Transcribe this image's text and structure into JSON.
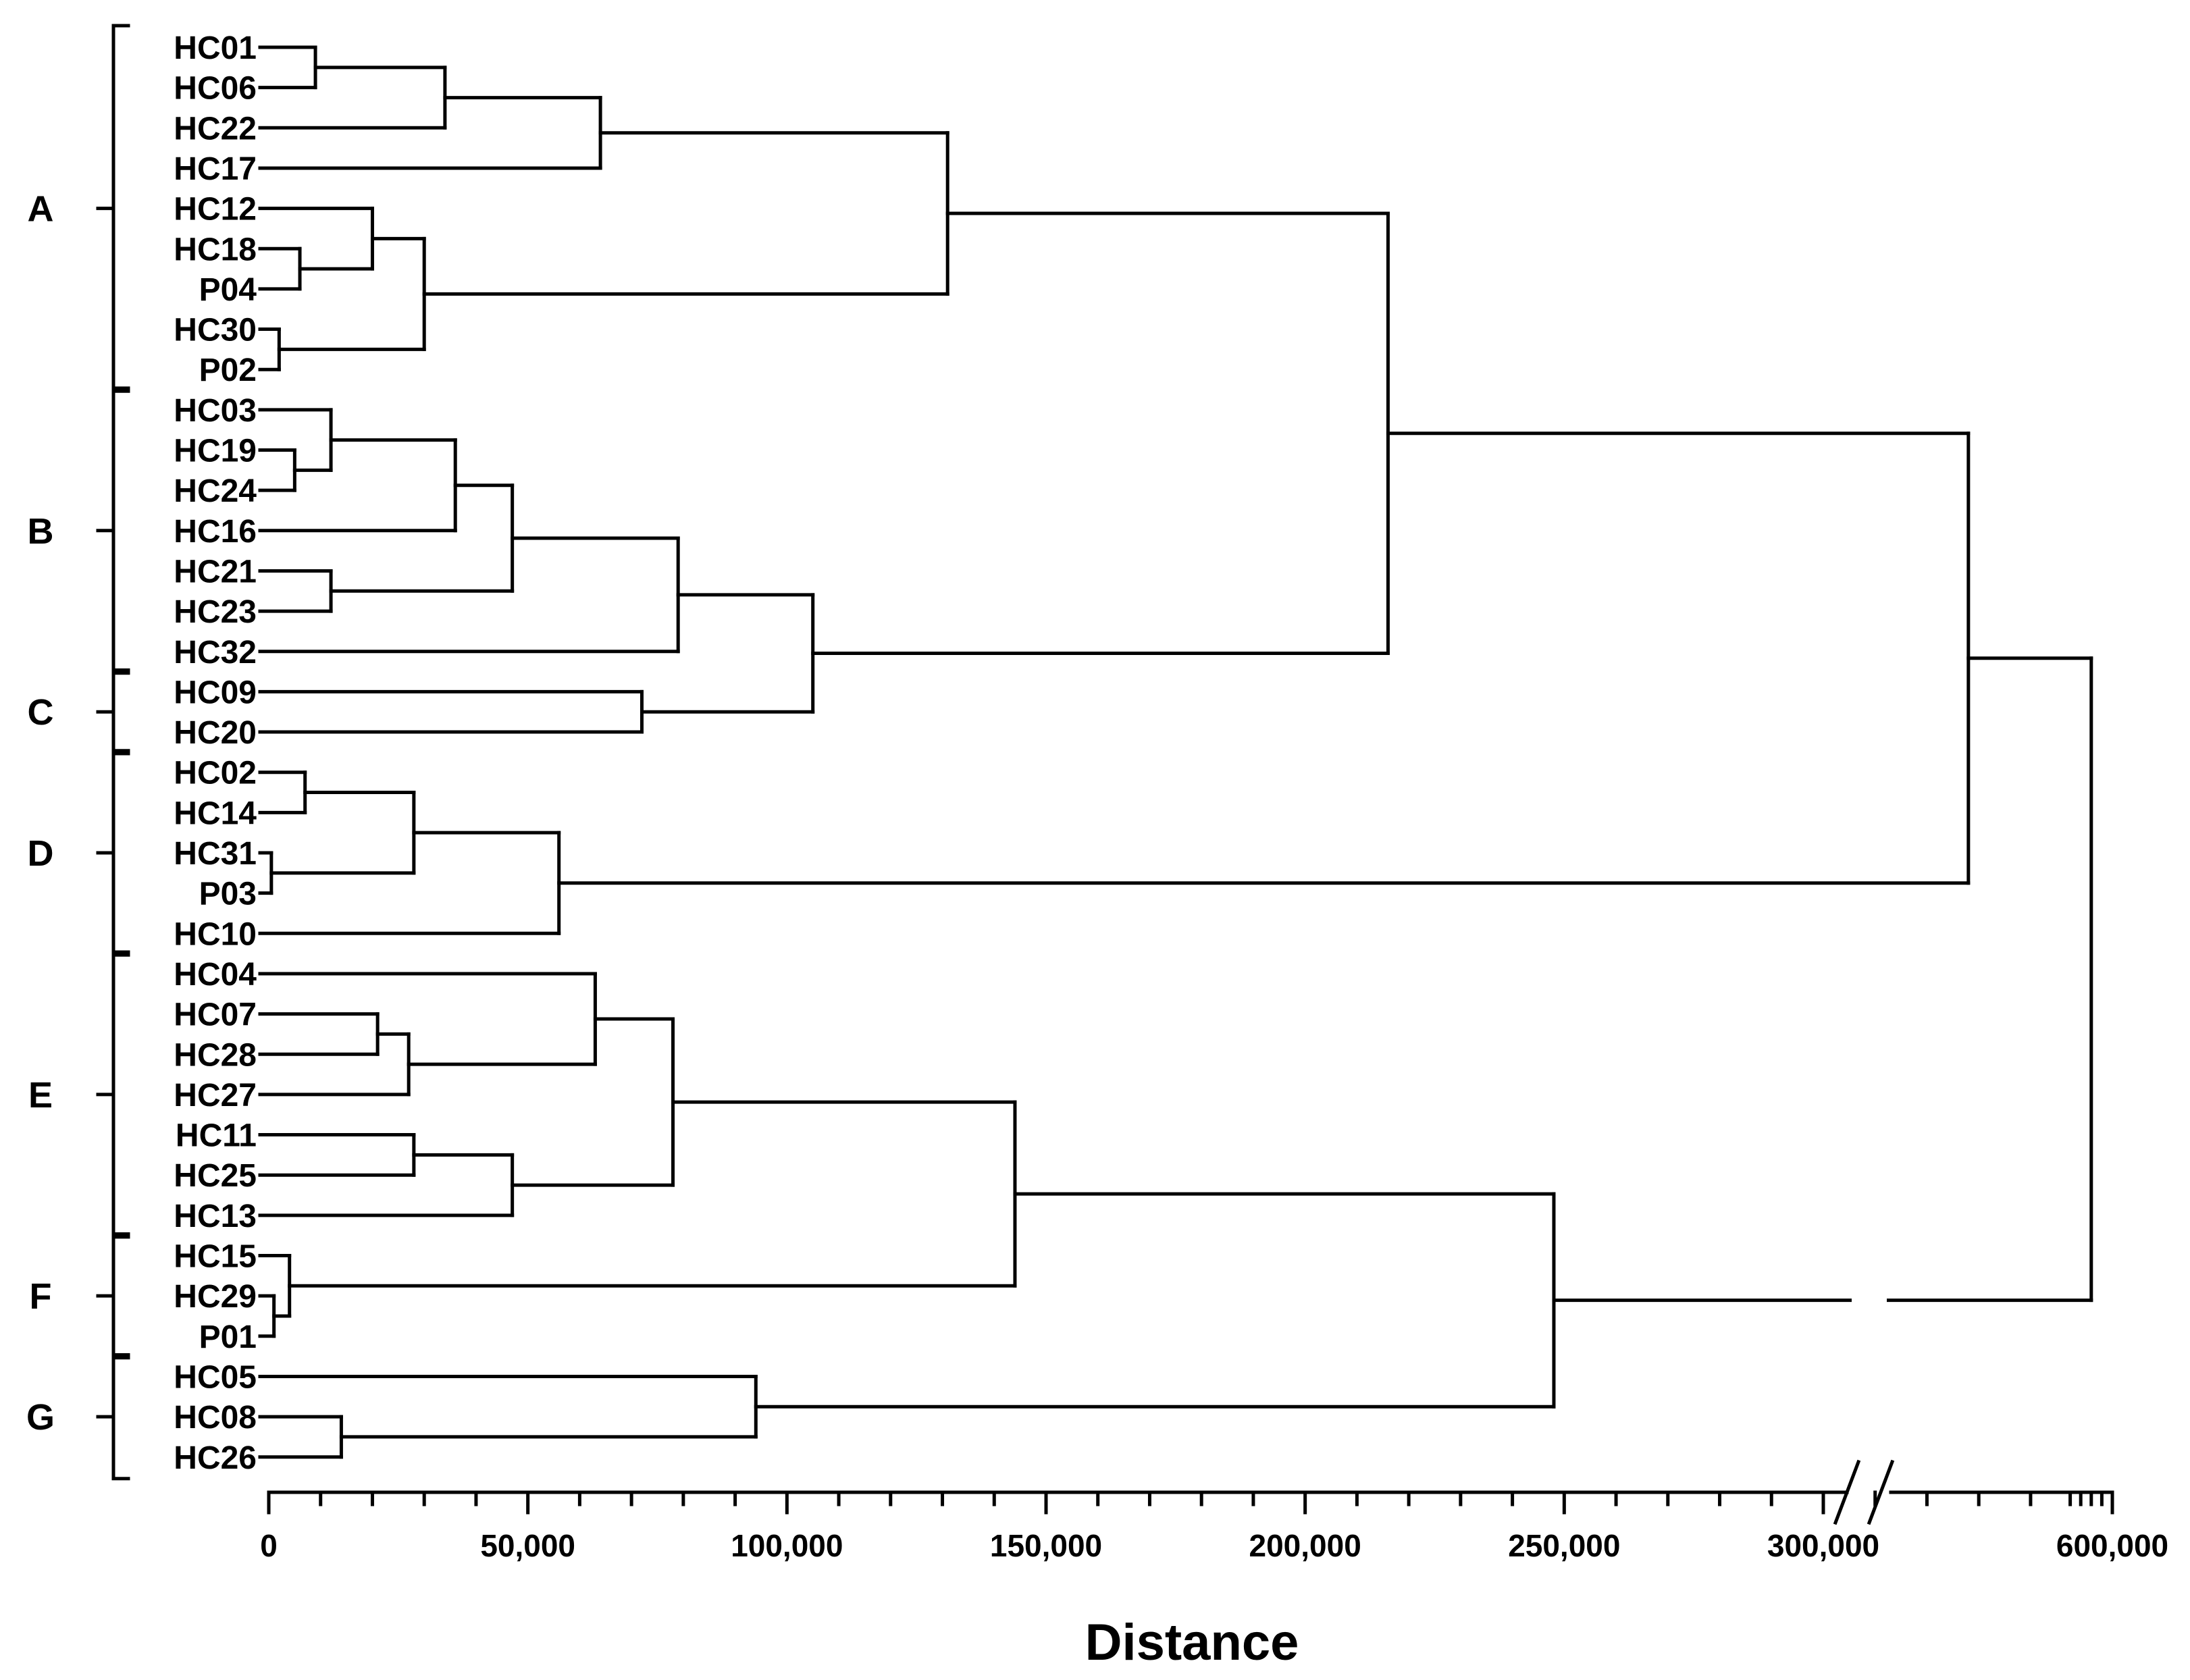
{
  "colors": {
    "ink": "#000000",
    "background": "#ffffff"
  },
  "chart_data": {
    "type": "dendrogram",
    "xlabel": "Distance",
    "x_ticks": [
      0,
      50000,
      100000,
      150000,
      200000,
      250000,
      300000,
      600000
    ],
    "x_tick_labels": [
      "0",
      "50,000",
      "100,000",
      "150,000",
      "200,000",
      "250,000",
      "300,000",
      "600,000"
    ],
    "axis_break": {
      "from": 350000,
      "to": 550000,
      "note": "broken axis between 300,000 and 600,000"
    },
    "leaves": [
      "HC01",
      "HC06",
      "HC22",
      "HC17",
      "HC12",
      "HC18",
      "P04",
      "HC30",
      "P02",
      "HC03",
      "HC19",
      "HC24",
      "HC16",
      "HC21",
      "HC23",
      "HC32",
      "HC09",
      "HC20",
      "HC02",
      "HC14",
      "HC31",
      "P03",
      "HC10",
      "HC04",
      "HC07",
      "HC28",
      "HC27",
      "HC11",
      "HC25",
      "HC13",
      "HC15",
      "HC29",
      "P01",
      "HC05",
      "HC08",
      "HC26"
    ],
    "groups": [
      {
        "label": "A",
        "first": 0,
        "last": 8
      },
      {
        "label": "B",
        "first": 9,
        "last": 15
      },
      {
        "label": "C",
        "first": 16,
        "last": 17
      },
      {
        "label": "D",
        "first": 18,
        "last": 22
      },
      {
        "label": "E",
        "first": 23,
        "last": 29
      },
      {
        "label": "F",
        "first": 30,
        "last": 32
      },
      {
        "label": "G",
        "first": 33,
        "last": 35
      }
    ],
    "merges": [
      {
        "id": "m1",
        "a": "HC01",
        "b": "HC06",
        "distance": 9000
      },
      {
        "id": "m2",
        "a": "m1",
        "b": "HC22",
        "distance": 34000
      },
      {
        "id": "m3",
        "a": "m2",
        "b": "HC17",
        "distance": 64000
      },
      {
        "id": "m4",
        "a": "HC18",
        "b": "P04",
        "distance": 6000
      },
      {
        "id": "m5",
        "a": "HC12",
        "b": "m4",
        "distance": 20000
      },
      {
        "id": "m6",
        "a": "HC30",
        "b": "P02",
        "distance": 2000
      },
      {
        "id": "m7",
        "a": "m5",
        "b": "m6",
        "distance": 30000
      },
      {
        "id": "m8",
        "a": "m3",
        "b": "m7",
        "distance": 131000
      },
      {
        "id": "m9",
        "a": "HC19",
        "b": "HC24",
        "distance": 5000
      },
      {
        "id": "m10",
        "a": "HC03",
        "b": "m9",
        "distance": 12000
      },
      {
        "id": "m11",
        "a": "m10",
        "b": "HC16",
        "distance": 36000
      },
      {
        "id": "m12",
        "a": "HC21",
        "b": "HC23",
        "distance": 12000
      },
      {
        "id": "m13",
        "a": "m11",
        "b": "m12",
        "distance": 47000
      },
      {
        "id": "m14",
        "a": "m13",
        "b": "HC32",
        "distance": 79000
      },
      {
        "id": "m15",
        "a": "HC09",
        "b": "HC20",
        "distance": 72000
      },
      {
        "id": "m16",
        "a": "m14",
        "b": "m15",
        "distance": 105000
      },
      {
        "id": "m17",
        "a": "m8",
        "b": "m16",
        "distance": 216000
      },
      {
        "id": "m18",
        "a": "HC02",
        "b": "HC14",
        "distance": 7000
      },
      {
        "id": "m19",
        "a": "HC31",
        "b": "P03",
        "distance": 500
      },
      {
        "id": "m20",
        "a": "m18",
        "b": "m19",
        "distance": 28000
      },
      {
        "id": "m21",
        "a": "m20",
        "b": "HC10",
        "distance": 56000
      },
      {
        "id": "m22",
        "a": "m17",
        "b": "m21",
        "distance": 328000
      },
      {
        "id": "m23",
        "a": "HC07",
        "b": "HC28",
        "distance": 21000
      },
      {
        "id": "m24",
        "a": "m23",
        "b": "HC27",
        "distance": 27000
      },
      {
        "id": "m25",
        "a": "HC04",
        "b": "m24",
        "distance": 63000
      },
      {
        "id": "m26",
        "a": "HC11",
        "b": "HC25",
        "distance": 28000
      },
      {
        "id": "m27",
        "a": "m26",
        "b": "HC13",
        "distance": 47000
      },
      {
        "id": "m28",
        "a": "m25",
        "b": "m27",
        "distance": 78000
      },
      {
        "id": "m29",
        "a": "HC29",
        "b": "P01",
        "distance": 1000
      },
      {
        "id": "m30",
        "a": "HC15",
        "b": "m29",
        "distance": 4000
      },
      {
        "id": "m31",
        "a": "m28",
        "b": "m30",
        "distance": 144000
      },
      {
        "id": "m32",
        "a": "HC08",
        "b": "HC26",
        "distance": 14000
      },
      {
        "id": "m33",
        "a": "HC05",
        "b": "m32",
        "distance": 94000
      },
      {
        "id": "m34",
        "a": "m31",
        "b": "m33",
        "distance": 248000
      },
      {
        "id": "m35",
        "a": "m22",
        "b": "m34",
        "distance": 580000
      }
    ]
  }
}
